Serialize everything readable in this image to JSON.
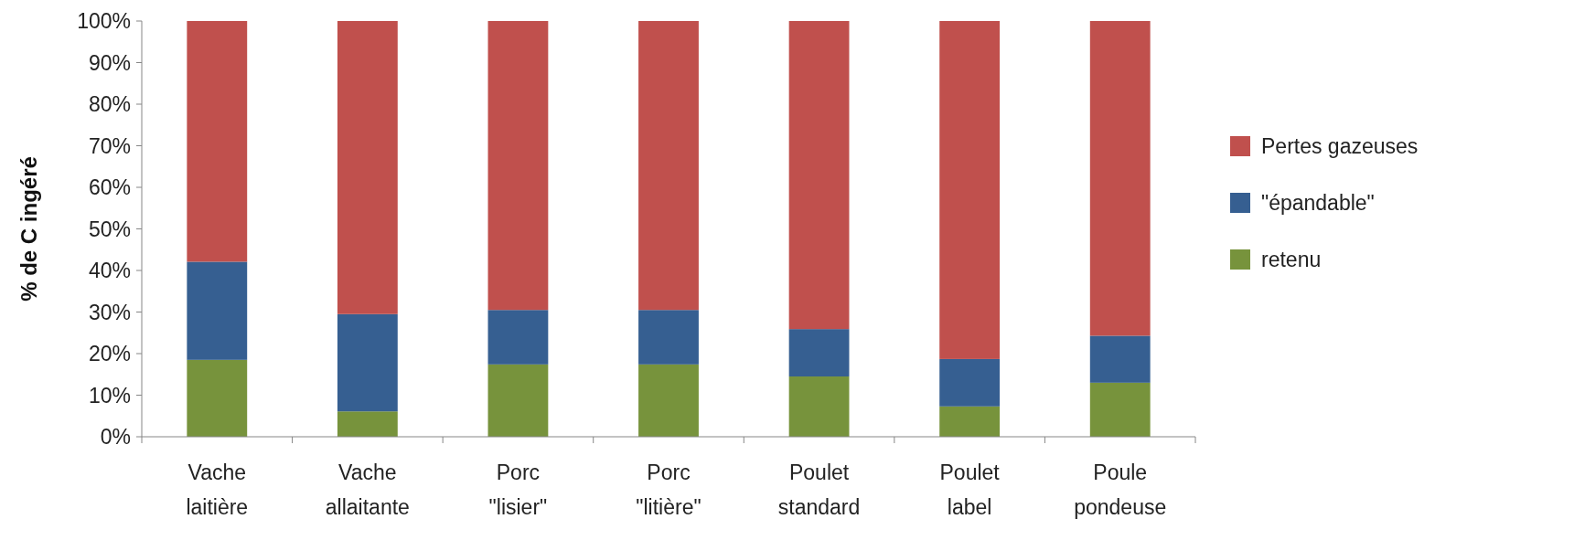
{
  "chart_data": {
    "type": "bar",
    "stacked": true,
    "ylabel": "% de C ingéré",
    "categories": [
      "Vache\nlaitière",
      "Vache\nallaitante",
      "Porc\n\"lisier\"",
      "Porc\n\"litière\"",
      "Poulet\nstandard",
      "Poulet\nlabel",
      "Poule\npondeuse"
    ],
    "series": [
      {
        "name": "retenu",
        "color": "#77933c",
        "values": [
          18.5,
          6.1,
          17.4,
          17.4,
          14.5,
          7.3,
          13.0
        ]
      },
      {
        "name": "\"épandable\"",
        "color": "#365f91",
        "values": [
          23.6,
          23.4,
          13.1,
          13.1,
          11.4,
          11.4,
          11.3
        ]
      },
      {
        "name": "Pertes gazeuses",
        "color": "#c0504d",
        "values": [
          57.9,
          70.5,
          69.5,
          69.5,
          74.1,
          81.3,
          75.7
        ]
      }
    ],
    "ylim": [
      0,
      100
    ],
    "yticks": [
      {
        "value": 0,
        "label": "0%"
      },
      {
        "value": 10,
        "label": "10%"
      },
      {
        "value": 20,
        "label": "20%"
      },
      {
        "value": 30,
        "label": "30%"
      },
      {
        "value": 40,
        "label": "40%"
      },
      {
        "value": 50,
        "label": "50%"
      },
      {
        "value": 60,
        "label": "60%"
      },
      {
        "value": 70,
        "label": "70%"
      },
      {
        "value": 80,
        "label": "80%"
      },
      {
        "value": 90,
        "label": "90%"
      },
      {
        "value": 100,
        "label": "100%"
      }
    ],
    "grid": false,
    "legend": "right"
  }
}
